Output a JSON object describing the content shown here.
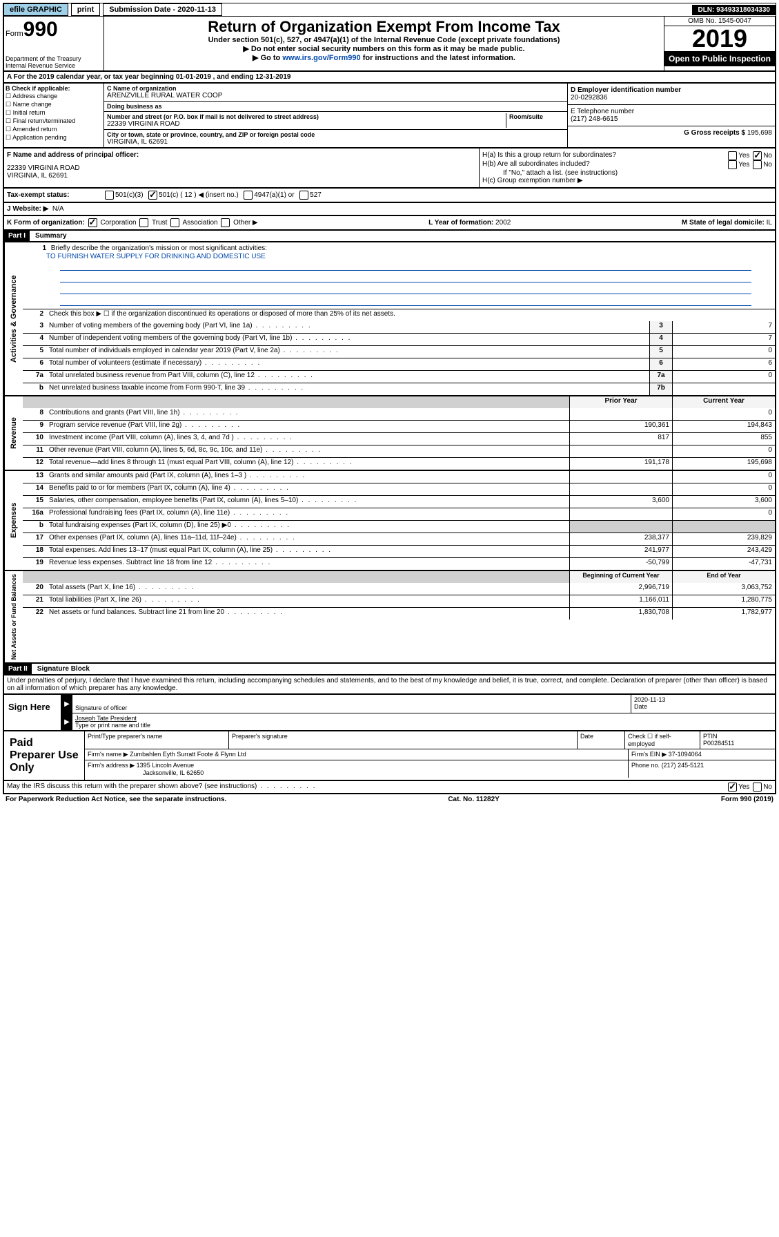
{
  "topbar": {
    "efile": "efile GRAPHIC",
    "print": "print",
    "sub_label": "Submission Date - ",
    "sub_date": "2020-11-13",
    "dln": "DLN: 93493318034330"
  },
  "header": {
    "form_prefix": "Form",
    "form_num": "990",
    "dept": "Department of the Treasury\nInternal Revenue Service",
    "title": "Return of Organization Exempt From Income Tax",
    "sub1": "Under section 501(c), 527, or 4947(a)(1) of the Internal Revenue Code (except private foundations)",
    "sub2": "▶ Do not enter social security numbers on this form as it may be made public.",
    "sub3_pre": "▶ Go to ",
    "sub3_link": "www.irs.gov/Form990",
    "sub3_post": " for instructions and the latest information.",
    "omb": "OMB No. 1545-0047",
    "year": "2019",
    "open": "Open to Public Inspection"
  },
  "row_a": "A For the 2019 calendar year, or tax year beginning 01-01-2019   , and ending 12-31-2019",
  "box_b": {
    "label": "B Check if applicable:",
    "items": [
      "Address change",
      "Name change",
      "Initial return",
      "Final return/terminated",
      "Amended return",
      "Application pending"
    ]
  },
  "box_c": {
    "name_label": "C Name of organization",
    "name": "ARENZVILLE RURAL WATER COOP",
    "dba_label": "Doing business as",
    "addr_label": "Number and street (or P.O. box if mail is not delivered to street address)",
    "room_label": "Room/suite",
    "addr": "22339 VIRGINIA ROAD",
    "city_label": "City or town, state or province, country, and ZIP or foreign postal code",
    "city": "VIRGINIA, IL  62691"
  },
  "box_d": {
    "label": "D Employer identification number",
    "val": "20-0292836"
  },
  "box_e": {
    "label": "E Telephone number",
    "val": "(217) 248-6615"
  },
  "box_g": {
    "label": "G Gross receipts $ ",
    "val": "195,698"
  },
  "box_f": {
    "label": "F  Name and address of principal officer:",
    "addr1": "22339 VIRGINIA ROAD",
    "addr2": "VIRGINIA, IL  62691"
  },
  "box_h": {
    "ha": "H(a)  Is this a group return for subordinates?",
    "hb": "H(b)  Are all subordinates included?",
    "hb_note": "If \"No,\" attach a list. (see instructions)",
    "hc": "H(c)  Group exemption number ▶",
    "yes": "Yes",
    "no": "No"
  },
  "row_i": {
    "label": "Tax-exempt status:",
    "opts": [
      "501(c)(3)",
      "501(c) ( 12 ) ◀ (insert no.)",
      "4947(a)(1) or",
      "527"
    ]
  },
  "row_j": {
    "label": "J   Website: ▶",
    "val": "N/A"
  },
  "row_k": {
    "label": "K Form of organization:",
    "opts": [
      "Corporation",
      "Trust",
      "Association",
      "Other ▶"
    ],
    "l_label": "L Year of formation: ",
    "l_val": "2002",
    "m_label": "M State of legal domicile: ",
    "m_val": "IL"
  },
  "part1": {
    "header": "Part I",
    "title": "Summary"
  },
  "governance": {
    "side": "Activities & Governance",
    "l1_label": "Briefly describe the organization's mission or most significant activities:",
    "l1_val": "TO FURNISH WATER SUPPLY FOR DRINKING AND DOMESTIC USE",
    "l2": "Check this box ▶ ☐  if the organization discontinued its operations or disposed of more than 25% of its net assets.",
    "rows": [
      {
        "n": "3",
        "d": "Number of voting members of the governing body (Part VI, line 1a)",
        "b": "3",
        "v": "7"
      },
      {
        "n": "4",
        "d": "Number of independent voting members of the governing body (Part VI, line 1b)",
        "b": "4",
        "v": "7"
      },
      {
        "n": "5",
        "d": "Total number of individuals employed in calendar year 2019 (Part V, line 2a)",
        "b": "5",
        "v": "0"
      },
      {
        "n": "6",
        "d": "Total number of volunteers (estimate if necessary)",
        "b": "6",
        "v": "6"
      },
      {
        "n": "7a",
        "d": "Total unrelated business revenue from Part VIII, column (C), line 12",
        "b": "7a",
        "v": "0"
      },
      {
        "n": "b",
        "d": "Net unrelated business taxable income from Form 990-T, line 39",
        "b": "7b",
        "v": ""
      }
    ]
  },
  "revenue": {
    "side": "Revenue",
    "h1": "Prior Year",
    "h2": "Current Year",
    "rows": [
      {
        "n": "8",
        "d": "Contributions and grants (Part VIII, line 1h)",
        "p": "",
        "c": "0"
      },
      {
        "n": "9",
        "d": "Program service revenue (Part VIII, line 2g)",
        "p": "190,361",
        "c": "194,843"
      },
      {
        "n": "10",
        "d": "Investment income (Part VIII, column (A), lines 3, 4, and 7d )",
        "p": "817",
        "c": "855"
      },
      {
        "n": "11",
        "d": "Other revenue (Part VIII, column (A), lines 5, 6d, 8c, 9c, 10c, and 11e)",
        "p": "",
        "c": "0"
      },
      {
        "n": "12",
        "d": "Total revenue—add lines 8 through 11 (must equal Part VIII, column (A), line 12)",
        "p": "191,178",
        "c": "195,698"
      }
    ]
  },
  "expenses": {
    "side": "Expenses",
    "rows": [
      {
        "n": "13",
        "d": "Grants and similar amounts paid (Part IX, column (A), lines 1–3 )",
        "p": "",
        "c": "0"
      },
      {
        "n": "14",
        "d": "Benefits paid to or for members (Part IX, column (A), line 4)",
        "p": "",
        "c": "0"
      },
      {
        "n": "15",
        "d": "Salaries, other compensation, employee benefits (Part IX, column (A), lines 5–10)",
        "p": "3,600",
        "c": "3,600"
      },
      {
        "n": "16a",
        "d": "Professional fundraising fees (Part IX, column (A), line 11e)",
        "p": "",
        "c": "0"
      },
      {
        "n": "b",
        "d": "Total fundraising expenses (Part IX, column (D), line 25) ▶0",
        "p": "shaded",
        "c": "shaded"
      },
      {
        "n": "17",
        "d": "Other expenses (Part IX, column (A), lines 11a–11d, 11f–24e)",
        "p": "238,377",
        "c": "239,829"
      },
      {
        "n": "18",
        "d": "Total expenses. Add lines 13–17 (must equal Part IX, column (A), line 25)",
        "p": "241,977",
        "c": "243,429"
      },
      {
        "n": "19",
        "d": "Revenue less expenses. Subtract line 18 from line 12",
        "p": "-50,799",
        "c": "-47,731"
      }
    ]
  },
  "netassets": {
    "side": "Net Assets or Fund Balances",
    "h1": "Beginning of Current Year",
    "h2": "End of Year",
    "rows": [
      {
        "n": "20",
        "d": "Total assets (Part X, line 16)",
        "p": "2,996,719",
        "c": "3,063,752"
      },
      {
        "n": "21",
        "d": "Total liabilities (Part X, line 26)",
        "p": "1,166,011",
        "c": "1,280,775"
      },
      {
        "n": "22",
        "d": "Net assets or fund balances. Subtract line 21 from line 20",
        "p": "1,830,708",
        "c": "1,782,977"
      }
    ]
  },
  "part2": {
    "header": "Part II",
    "title": "Signature Block"
  },
  "perjury": "Under penalties of perjury, I declare that I have examined this return, including accompanying schedules and statements, and to the best of my knowledge and belief, it is true, correct, and complete. Declaration of preparer (other than officer) is based on all information of which preparer has any knowledge.",
  "sign": {
    "label": "Sign Here",
    "sig_label": "Signature of officer",
    "date_label": "Date",
    "date": "2020-11-13",
    "name": "Joseph Tate President",
    "name_label": "Type or print name and title"
  },
  "prep": {
    "label": "Paid Preparer Use Only",
    "h1": "Print/Type preparer's name",
    "h2": "Preparer's signature",
    "h3": "Date",
    "h4_a": "Check ☐ if self-employed",
    "h5": "PTIN",
    "ptin": "P00284511",
    "firm_label": "Firm's name    ▶",
    "firm": "Zumbahlen Eyth Surratt Foote & Flynn Ltd",
    "ein_label": "Firm's EIN ▶",
    "ein": "37-1094064",
    "addr_label": "Firm's address ▶",
    "addr1": "1395 Lincoln Avenue",
    "addr2": "Jacksonville, IL  62650",
    "phone_label": "Phone no.",
    "phone": "(217) 245-5121"
  },
  "discuss": {
    "q": "May the IRS discuss this return with the preparer shown above? (see instructions)",
    "yes": "Yes",
    "no": "No"
  },
  "footer": {
    "left": "For Paperwork Reduction Act Notice, see the separate instructions.",
    "mid": "Cat. No. 11282Y",
    "right": "Form 990 (2019)"
  }
}
